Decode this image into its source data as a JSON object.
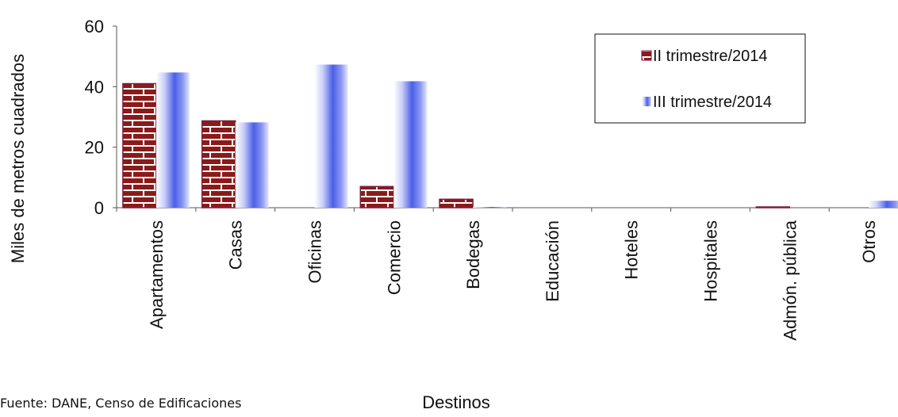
{
  "chart_data": {
    "type": "bar",
    "title": "",
    "xlabel": "Destinos",
    "ylabel": "Miles de metros cuadrados",
    "ylim": [
      0,
      60
    ],
    "yticks": [
      0,
      20,
      40,
      60
    ],
    "grid": false,
    "legend_position": "top-right",
    "categories": [
      "Apartamentos",
      "Casas",
      "Oficinas",
      "Comercio",
      "Bodegas",
      "Educación",
      "Hoteles",
      "Hospitales",
      "Admón. pública",
      "Otros"
    ],
    "series": [
      {
        "name": "II trimestre/2014",
        "color": "#8B1A1A",
        "values": [
          41.0,
          28.7,
          0.0,
          7.0,
          2.8,
          0.0,
          0.0,
          0.0,
          0.2,
          0.0
        ]
      },
      {
        "name": "III trimestre/2014",
        "color": "#4A5FE8",
        "values": [
          44.7,
          28.2,
          47.3,
          41.8,
          0.2,
          0.0,
          0.0,
          0.0,
          0.0,
          2.3
        ]
      }
    ]
  },
  "source_note": "Fuente: DANE, Censo de Edificaciones"
}
